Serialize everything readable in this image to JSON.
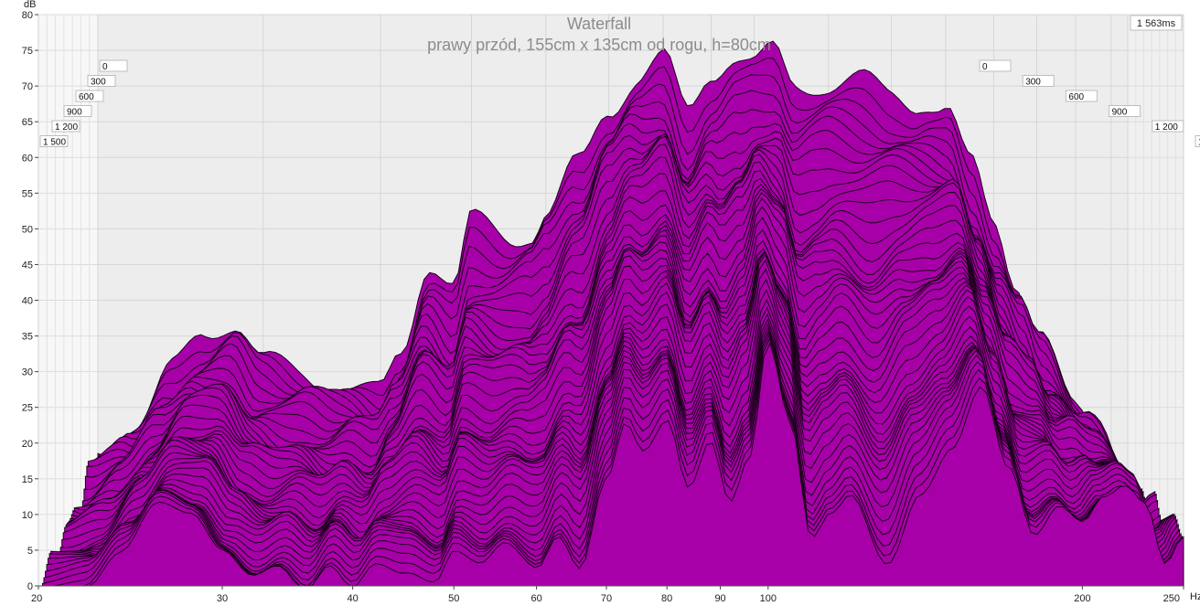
{
  "chart_data": {
    "type": "waterfall",
    "title": "Waterfall",
    "subtitle": "prawy przód, 155cm x 135cm od rogu, h=80cm",
    "ylabel": "dB",
    "xunit": "Hz",
    "xscale": "log",
    "xlim": [
      20,
      250
    ],
    "ylim": [
      0,
      80
    ],
    "x_ticks": [
      "20",
      "30",
      "40",
      "50",
      "60",
      "70",
      "80",
      "90",
      "100",
      "200",
      "250"
    ],
    "x_tick_values": [
      20,
      30,
      40,
      50,
      60,
      70,
      80,
      90,
      100,
      200,
      250
    ],
    "y_ticks": [
      0,
      5,
      10,
      15,
      20,
      25,
      30,
      35,
      40,
      45,
      50,
      55,
      60,
      65,
      70,
      75,
      80
    ],
    "time_axis_max": "1 563ms",
    "time_ticks": [
      "0",
      "300",
      "600",
      "900",
      "1 200",
      "1 500"
    ],
    "fill_color": "#a800a8",
    "line_color": "#1a001a",
    "back_slice_0ms": {
      "freq": [
        20,
        22,
        24,
        26,
        28,
        30,
        33,
        36,
        40,
        42,
        45,
        48,
        50,
        55,
        58,
        60,
        65,
        70,
        75,
        80,
        85,
        90,
        95,
        100,
        105,
        110,
        120,
        130,
        140,
        150,
        160,
        170,
        180,
        190,
        200,
        220,
        250
      ],
      "db": [
        19,
        24,
        30,
        34,
        36,
        31,
        30,
        29,
        28,
        33,
        45,
        41,
        50,
        48,
        49,
        52,
        60,
        68,
        72,
        74,
        66,
        71,
        73,
        72,
        74,
        70,
        71,
        72,
        70,
        68,
        66,
        58,
        50,
        42,
        35,
        25,
        15
      ]
    },
    "front_slice_1563ms": {
      "freq": [
        20,
        22,
        24,
        26,
        28,
        30,
        32,
        34,
        36,
        38,
        40,
        42,
        45,
        48,
        50,
        53,
        56,
        60,
        63,
        66,
        70,
        73,
        76,
        80,
        84,
        88,
        92,
        96,
        100,
        105,
        110,
        115,
        120,
        130,
        140,
        150,
        160,
        170,
        180,
        190,
        200,
        210,
        220,
        230,
        240,
        250
      ],
      "db": [
        0,
        0,
        5,
        11,
        9,
        4,
        1,
        3,
        0,
        4,
        1,
        4,
        2,
        0,
        4,
        2,
        5,
        2,
        7,
        3,
        16,
        24,
        20,
        24,
        14,
        20,
        11,
        17,
        33,
        22,
        6,
        10,
        13,
        4,
        14,
        20,
        28,
        16,
        6,
        10,
        8,
        12,
        14,
        12,
        4,
        8
      ]
    }
  }
}
